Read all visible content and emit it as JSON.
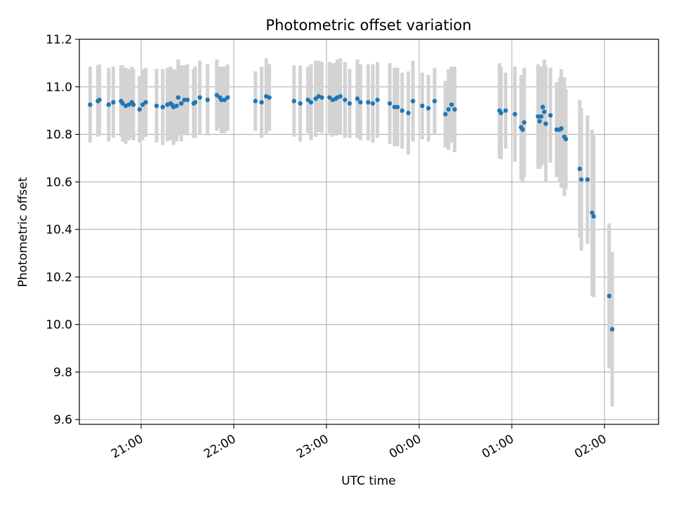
{
  "chart_data": {
    "type": "scatter",
    "title": "Photometric offset variation",
    "xlabel": "UTC time",
    "ylabel": "Photometric offset",
    "x_axis_kind": "time (minutes after 20:00 UTC)",
    "xlim": [
      "20:20",
      "02:35"
    ],
    "ylim": [
      9.58,
      11.2
    ],
    "yticks": [
      "9.6",
      "9.8",
      "10.0",
      "10.2",
      "10.4",
      "10.6",
      "10.8",
      "11.0",
      "11.2"
    ],
    "xticks": [
      {
        "label": "21:00",
        "time": "21:00"
      },
      {
        "label": "22:00",
        "time": "22:00"
      },
      {
        "label": "23:00",
        "time": "23:00"
      },
      {
        "label": "00:00",
        "time": "00:00"
      },
      {
        "label": "01:00",
        "time": "01:00"
      },
      {
        "label": "02:00",
        "time": "02:00"
      }
    ],
    "grid": true,
    "colors": {
      "point": "#1f77b4",
      "errorbar": "#d3d3d3",
      "grid": "#b0b0b0"
    },
    "series": [
      {
        "points": [
          [
            "20:27",
            10.925,
            0.16
          ],
          [
            "20:32",
            10.94,
            0.15
          ],
          [
            "20:33",
            10.945,
            0.15
          ],
          [
            "20:39",
            10.925,
            0.155
          ],
          [
            "20:42",
            10.935,
            0.15
          ],
          [
            "20:47",
            10.94,
            0.15
          ],
          [
            "20:48",
            10.93,
            0.16
          ],
          [
            "20:50",
            10.92,
            0.16
          ],
          [
            "20:52",
            10.925,
            0.15
          ],
          [
            "20:54",
            10.935,
            0.15
          ],
          [
            "20:55",
            10.925,
            0.15
          ],
          [
            "20:59",
            10.905,
            0.14
          ],
          [
            "21:01",
            10.925,
            0.15
          ],
          [
            "21:03",
            10.935,
            0.145
          ],
          [
            "21:10",
            10.92,
            0.155
          ],
          [
            "21:14",
            10.915,
            0.16
          ],
          [
            "21:17",
            10.925,
            0.155
          ],
          [
            "21:19",
            10.93,
            0.155
          ],
          [
            "21:20",
            10.925,
            0.15
          ],
          [
            "21:21",
            10.915,
            0.16
          ],
          [
            "21:23",
            10.92,
            0.15
          ],
          [
            "21:24",
            10.955,
            0.16
          ],
          [
            "21:26",
            10.93,
            0.16
          ],
          [
            "21:28",
            10.945,
            0.145
          ],
          [
            "21:30",
            10.945,
            0.15
          ],
          [
            "21:34",
            10.93,
            0.145
          ],
          [
            "21:35",
            10.935,
            0.15
          ],
          [
            "21:38",
            10.955,
            0.155
          ],
          [
            "21:43",
            10.945,
            0.15
          ],
          [
            "21:49",
            10.965,
            0.15
          ],
          [
            "21:51",
            10.955,
            0.13
          ],
          [
            "21:52",
            10.945,
            0.14
          ],
          [
            "21:54",
            10.945,
            0.14
          ],
          [
            "21:56",
            10.955,
            0.14
          ],
          [
            "22:14",
            10.94,
            0.125
          ],
          [
            "22:18",
            10.935,
            0.15
          ],
          [
            "22:21",
            10.96,
            0.16
          ],
          [
            "22:23",
            10.955,
            0.14
          ],
          [
            "22:39",
            10.94,
            0.15
          ],
          [
            "22:43",
            10.93,
            0.16
          ],
          [
            "22:48",
            10.945,
            0.14
          ],
          [
            "22:50",
            10.935,
            0.16
          ],
          [
            "22:53",
            10.95,
            0.16
          ],
          [
            "22:55",
            10.96,
            0.15
          ],
          [
            "22:57",
            10.955,
            0.15
          ],
          [
            "23:02",
            10.955,
            0.15
          ],
          [
            "23:04",
            10.945,
            0.155
          ],
          [
            "23:06",
            10.95,
            0.15
          ],
          [
            "23:07",
            10.955,
            0.16
          ],
          [
            "23:09",
            10.96,
            0.16
          ],
          [
            "23:12",
            10.945,
            0.16
          ],
          [
            "23:15",
            10.93,
            0.145
          ],
          [
            "23:20",
            10.95,
            0.165
          ],
          [
            "23:22",
            10.935,
            0.16
          ],
          [
            "23:27",
            10.935,
            0.16
          ],
          [
            "23:30",
            10.93,
            0.165
          ],
          [
            "23:33",
            10.945,
            0.16
          ],
          [
            "23:41",
            10.93,
            0.17
          ],
          [
            "23:44",
            10.915,
            0.165
          ],
          [
            "23:46",
            10.915,
            0.165
          ],
          [
            "23:49",
            10.9,
            0.16
          ],
          [
            "23:53",
            10.89,
            0.175
          ],
          [
            "23:56",
            10.94,
            0.17
          ],
          [
            "00:02",
            10.92,
            0.14
          ],
          [
            "00:06",
            10.91,
            0.14
          ],
          [
            "00:10",
            10.94,
            0.14
          ],
          [
            "00:17",
            10.885,
            0.14
          ],
          [
            "00:19",
            10.905,
            0.17
          ],
          [
            "00:21",
            10.925,
            0.16
          ],
          [
            "00:23",
            10.905,
            0.18
          ],
          [
            "00:52",
            10.9,
            0.2
          ],
          [
            "00:53",
            10.89,
            0.195
          ],
          [
            "00:56",
            10.9,
            0.16
          ],
          [
            "01:02",
            10.885,
            0.2
          ],
          [
            "01:06",
            10.83,
            0.22
          ],
          [
            "01:07",
            10.82,
            0.22
          ],
          [
            "01:08",
            10.85,
            0.23
          ],
          [
            "01:17",
            10.875,
            0.22
          ],
          [
            "01:18",
            10.855,
            0.2
          ],
          [
            "01:19",
            10.875,
            0.21
          ],
          [
            "01:20",
            10.915,
            0.17
          ],
          [
            "01:21",
            10.895,
            0.22
          ],
          [
            "01:22",
            10.845,
            0.245
          ],
          [
            "01:25",
            10.88,
            0.2
          ],
          [
            "01:29",
            10.82,
            0.2
          ],
          [
            "01:31",
            10.82,
            0.22
          ],
          [
            "01:32",
            10.825,
            0.25
          ],
          [
            "01:34",
            10.79,
            0.25
          ],
          [
            "01:35",
            10.78,
            0.21
          ],
          [
            "01:44",
            10.655,
            0.29
          ],
          [
            "01:45",
            10.61,
            0.3
          ],
          [
            "01:49",
            10.61,
            0.27
          ],
          [
            "01:52",
            10.47,
            0.35
          ],
          [
            "01:53",
            10.455,
            0.34
          ],
          [
            "02:03",
            10.12,
            0.305
          ],
          [
            "02:05",
            9.98,
            0.325
          ]
        ]
      }
    ]
  }
}
